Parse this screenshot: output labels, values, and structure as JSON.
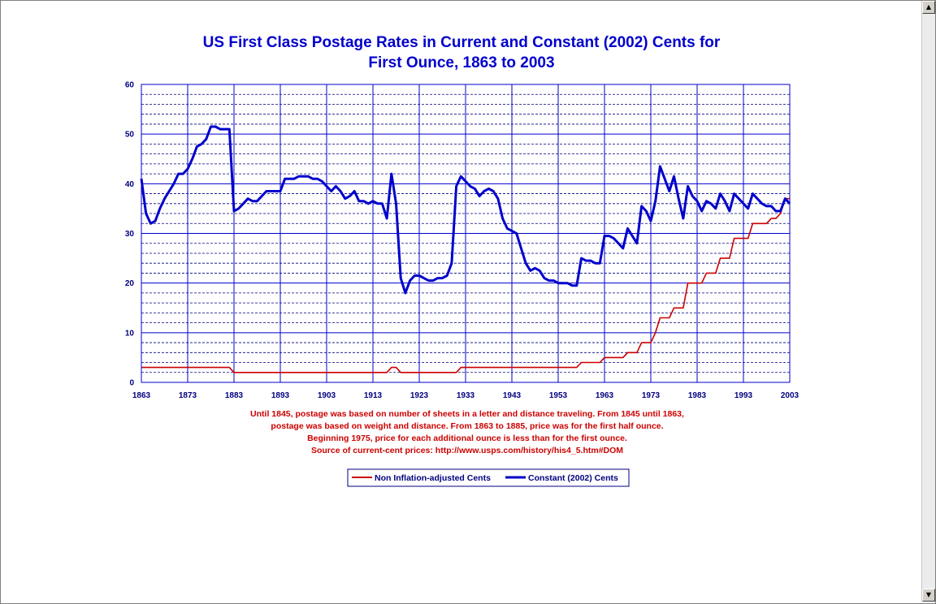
{
  "colors": {
    "current": "#cc0000",
    "constant": "#0000cc",
    "grid": "#0000cc",
    "title": "#0000cc",
    "note": "#cc0000"
  },
  "scrollbar": {
    "up_icon": "up-arrow-icon",
    "down_icon": "down-arrow-icon"
  },
  "chart_data": {
    "type": "line",
    "title": [
      "US First Class Postage Rates in Current and Constant (2002) Cents for",
      "First Ounce, 1863 to 2003"
    ],
    "xlim": [
      1863,
      2003
    ],
    "ylim": [
      0,
      60
    ],
    "x_ticks": [
      1863,
      1873,
      1883,
      1893,
      1903,
      1913,
      1923,
      1933,
      1943,
      1953,
      1963,
      1973,
      1983,
      1993,
      2003
    ],
    "y_ticks": [
      0,
      10,
      20,
      30,
      40,
      50,
      60
    ],
    "grid": {
      "major_horizontal": true,
      "minor_horizontal_dashed": true,
      "vertical": true
    },
    "notes": [
      "Until 1845, postage was based on number of sheets in a letter and distance traveling.  From 1845 until 1863,",
      "postage was based on weight and distance.  From 1863 to 1885, price was for the first half ounce.",
      "Beginning 1975, price for each additional ounce is less than for the first ounce.",
      "Source of current-cent prices:  http://www.usps.com/history/his4_5.htm#DOM"
    ],
    "legend_position": "bottom-center",
    "series": [
      {
        "name": "Non Inflation-adjusted  Cents",
        "points": [
          [
            1863,
            3
          ],
          [
            1882,
            3
          ],
          [
            1883,
            2
          ],
          [
            1916,
            2
          ],
          [
            1917,
            3
          ],
          [
            1918,
            3
          ],
          [
            1919,
            2
          ],
          [
            1931,
            2
          ],
          [
            1932,
            3
          ],
          [
            1957,
            3
          ],
          [
            1958,
            4
          ],
          [
            1962,
            4
          ],
          [
            1963,
            5
          ],
          [
            1967,
            5
          ],
          [
            1968,
            6
          ],
          [
            1970,
            6
          ],
          [
            1971,
            8
          ],
          [
            1973,
            8
          ],
          [
            1974,
            10
          ],
          [
            1975,
            13
          ],
          [
            1977,
            13
          ],
          [
            1978,
            15
          ],
          [
            1980,
            15
          ],
          [
            1981,
            20
          ],
          [
            1984,
            20
          ],
          [
            1985,
            22
          ],
          [
            1987,
            22
          ],
          [
            1988,
            25
          ],
          [
            1990,
            25
          ],
          [
            1991,
            29
          ],
          [
            1994,
            29
          ],
          [
            1995,
            32
          ],
          [
            1998,
            32
          ],
          [
            1999,
            33
          ],
          [
            2000,
            33
          ],
          [
            2001,
            34
          ],
          [
            2002,
            37
          ],
          [
            2003,
            37
          ]
        ]
      },
      {
        "name": "Constant (2002) Cents",
        "points": [
          [
            1863,
            41
          ],
          [
            1864,
            34
          ],
          [
            1865,
            32
          ],
          [
            1866,
            32.5
          ],
          [
            1867,
            35
          ],
          [
            1868,
            37
          ],
          [
            1869,
            38.5
          ],
          [
            1870,
            40
          ],
          [
            1871,
            42
          ],
          [
            1872,
            42
          ],
          [
            1873,
            43
          ],
          [
            1874,
            45
          ],
          [
            1875,
            47.5
          ],
          [
            1876,
            48
          ],
          [
            1877,
            49
          ],
          [
            1878,
            51.5
          ],
          [
            1879,
            51.5
          ],
          [
            1880,
            51
          ],
          [
            1881,
            51
          ],
          [
            1882,
            51
          ],
          [
            1883,
            34.5
          ],
          [
            1884,
            35
          ],
          [
            1885,
            36
          ],
          [
            1886,
            37
          ],
          [
            1887,
            36.5
          ],
          [
            1888,
            36.5
          ],
          [
            1889,
            37.5
          ],
          [
            1890,
            38.5
          ],
          [
            1891,
            38.5
          ],
          [
            1892,
            38.5
          ],
          [
            1893,
            38.5
          ],
          [
            1894,
            41
          ],
          [
            1895,
            41
          ],
          [
            1896,
            41
          ],
          [
            1897,
            41.5
          ],
          [
            1898,
            41.5
          ],
          [
            1899,
            41.5
          ],
          [
            1900,
            41
          ],
          [
            1901,
            41
          ],
          [
            1902,
            40.5
          ],
          [
            1903,
            39.5
          ],
          [
            1904,
            38.5
          ],
          [
            1905,
            39.5
          ],
          [
            1906,
            38.5
          ],
          [
            1907,
            37
          ],
          [
            1908,
            37.5
          ],
          [
            1909,
            38.5
          ],
          [
            1910,
            36.5
          ],
          [
            1911,
            36.5
          ],
          [
            1912,
            36
          ],
          [
            1913,
            36.5
          ],
          [
            1914,
            36
          ],
          [
            1915,
            36
          ],
          [
            1916,
            33
          ],
          [
            1917,
            42
          ],
          [
            1918,
            36
          ],
          [
            1919,
            21
          ],
          [
            1920,
            18
          ],
          [
            1921,
            20.5
          ],
          [
            1922,
            21.5
          ],
          [
            1923,
            21.5
          ],
          [
            1924,
            21
          ],
          [
            1925,
            20.5
          ],
          [
            1926,
            20.5
          ],
          [
            1927,
            21
          ],
          [
            1928,
            21
          ],
          [
            1929,
            21.5
          ],
          [
            1930,
            24
          ],
          [
            1931,
            39.5
          ],
          [
            1932,
            41.5
          ],
          [
            1933,
            40.5
          ],
          [
            1934,
            39.5
          ],
          [
            1935,
            39
          ],
          [
            1936,
            37.5
          ],
          [
            1937,
            38.5
          ],
          [
            1938,
            39
          ],
          [
            1939,
            38.5
          ],
          [
            1940,
            37
          ],
          [
            1941,
            33
          ],
          [
            1942,
            31
          ],
          [
            1943,
            30.5
          ],
          [
            1944,
            30
          ],
          [
            1945,
            27
          ],
          [
            1946,
            24
          ],
          [
            1947,
            22.5
          ],
          [
            1948,
            23
          ],
          [
            1949,
            22.5
          ],
          [
            1950,
            21
          ],
          [
            1951,
            20.5
          ],
          [
            1952,
            20.5
          ],
          [
            1953,
            20
          ],
          [
            1954,
            20
          ],
          [
            1955,
            20
          ],
          [
            1956,
            19.5
          ],
          [
            1957,
            19.5
          ],
          [
            1958,
            25
          ],
          [
            1959,
            24.5
          ],
          [
            1960,
            24.5
          ],
          [
            1961,
            24
          ],
          [
            1962,
            24
          ],
          [
            1963,
            29.5
          ],
          [
            1964,
            29.5
          ],
          [
            1965,
            29
          ],
          [
            1966,
            28
          ],
          [
            1967,
            27
          ],
          [
            1968,
            31
          ],
          [
            1969,
            29.5
          ],
          [
            1970,
            28
          ],
          [
            1971,
            35.5
          ],
          [
            1972,
            34.5
          ],
          [
            1973,
            32.5
          ],
          [
            1974,
            36.5
          ],
          [
            1975,
            43.5
          ],
          [
            1976,
            41
          ],
          [
            1977,
            38.5
          ],
          [
            1978,
            41.5
          ],
          [
            1979,
            37
          ],
          [
            1980,
            33
          ],
          [
            1981,
            39.5
          ],
          [
            1982,
            37.5
          ],
          [
            1983,
            36.5
          ],
          [
            1984,
            34.5
          ],
          [
            1985,
            36.5
          ],
          [
            1986,
            36
          ],
          [
            1987,
            35
          ],
          [
            1988,
            38
          ],
          [
            1989,
            36.5
          ],
          [
            1990,
            34.5
          ],
          [
            1991,
            38
          ],
          [
            1992,
            37
          ],
          [
            1993,
            36
          ],
          [
            1994,
            35
          ],
          [
            1995,
            38
          ],
          [
            1996,
            37
          ],
          [
            1997,
            36
          ],
          [
            1998,
            35.5
          ],
          [
            1999,
            35.5
          ],
          [
            2000,
            34.5
          ],
          [
            2001,
            34.5
          ],
          [
            2002,
            37
          ],
          [
            2003,
            36
          ]
        ]
      }
    ]
  }
}
